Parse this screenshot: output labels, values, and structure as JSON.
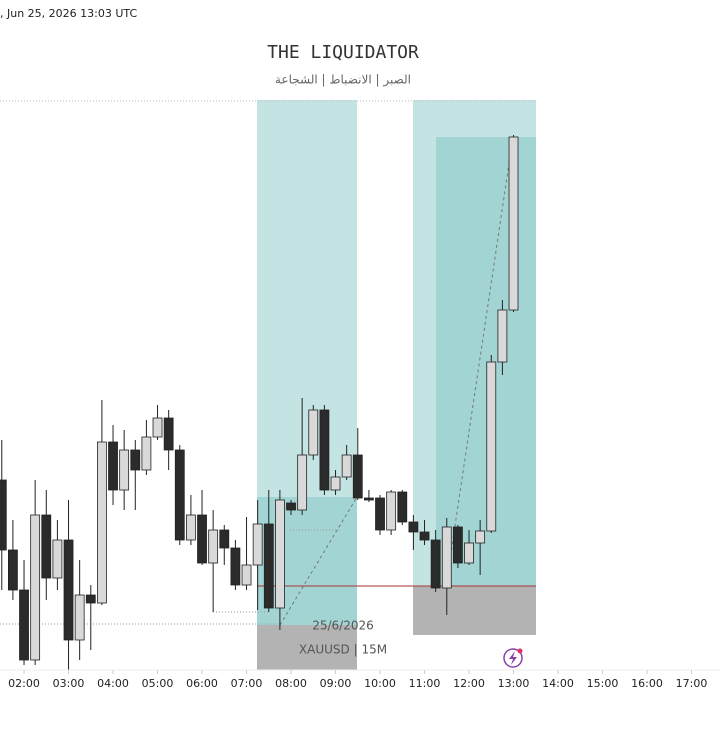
{
  "header": {
    "timestamp": ", Jun 25, 2026 13:03 UTC"
  },
  "chart_data": {
    "type": "candlestick",
    "title": "THE LIQUIDATOR",
    "subtitle": "الصبر | الانضباط | الشجاعة",
    "annotations": [
      "25/6/2026",
      "XAUUSD | 15M"
    ],
    "up_color": "#d9d9d9",
    "down_color": "#2b2b2b",
    "x": [
      1.5,
      1.75,
      2,
      2.25,
      2.5,
      2.75,
      3,
      3.25,
      3.5,
      3.75,
      4,
      4.25,
      4.5,
      4.75,
      5,
      5.25,
      5.5,
      5.75,
      6,
      6.25,
      6.5,
      6.75,
      7,
      7.25,
      7.5,
      7.75,
      8,
      8.25,
      8.5,
      8.75,
      9,
      9.25,
      9.5,
      9.75,
      10,
      10.25,
      10.5,
      10.75,
      11,
      11.25,
      11.5,
      11.75,
      12,
      12.25,
      12.5,
      12.75,
      13
    ],
    "open": [
      220,
      150,
      110,
      40,
      185,
      122,
      160,
      60,
      105,
      97,
      258,
      210,
      250,
      230,
      263,
      282,
      250,
      160,
      185,
      137,
      170,
      152,
      115,
      135,
      176,
      92,
      197,
      190,
      245,
      290,
      210,
      223,
      245,
      202,
      202,
      170,
      208,
      178,
      168,
      160,
      112,
      173,
      137,
      157,
      169,
      338,
      390
    ],
    "high": [
      260,
      180,
      140,
      220,
      210,
      180,
      200,
      140,
      115,
      300,
      275,
      270,
      260,
      280,
      295,
      290,
      255,
      205,
      210,
      190,
      175,
      160,
      183,
      200,
      210,
      210,
      200,
      302,
      295,
      295,
      230,
      255,
      272,
      210,
      205,
      210,
      210,
      185,
      180,
      170,
      182,
      175,
      170,
      180,
      345,
      400,
      565
    ],
    "low": [
      110,
      100,
      35,
      35,
      100,
      110,
      30,
      40,
      50,
      95,
      195,
      190,
      190,
      225,
      260,
      230,
      155,
      155,
      135,
      88,
      135,
      110,
      110,
      90,
      88,
      70,
      185,
      185,
      240,
      205,
      205,
      220,
      200,
      198,
      165,
      165,
      175,
      150,
      155,
      108,
      85,
      132,
      135,
      125,
      167,
      325,
      388
    ],
    "close": [
      150,
      110,
      40,
      185,
      122,
      160,
      60,
      105,
      97,
      258,
      210,
      250,
      230,
      263,
      282,
      250,
      160,
      185,
      137,
      170,
      152,
      115,
      135,
      176,
      92,
      200,
      190,
      245,
      290,
      210,
      223,
      245,
      202,
      200,
      170,
      208,
      178,
      168,
      160,
      112,
      173,
      137,
      157,
      169,
      338,
      390,
      563
    ],
    "xlim": [
      1.46,
      17.64
    ],
    "ylim": [
      30,
      600
    ],
    "xticks": [
      {
        "value": 2,
        "label": "02:00"
      },
      {
        "value": 3,
        "label": "03:00"
      },
      {
        "value": 4,
        "label": "04:00"
      },
      {
        "value": 5,
        "label": "05:00"
      },
      {
        "value": 6,
        "label": "06:00"
      },
      {
        "value": 7,
        "label": "07:00"
      },
      {
        "value": 8,
        "label": "08:00"
      },
      {
        "value": 9,
        "label": "09:00"
      },
      {
        "value": 10,
        "label": "10:00"
      },
      {
        "value": 11,
        "label": "11:00"
      },
      {
        "value": 12,
        "label": "12:00"
      },
      {
        "value": 13,
        "label": "13:00"
      },
      {
        "value": 14,
        "label": "14:00"
      },
      {
        "value": 15,
        "label": "15:00"
      },
      {
        "value": 16,
        "label": "16:00"
      },
      {
        "value": 17,
        "label": "17:00"
      }
    ]
  }
}
